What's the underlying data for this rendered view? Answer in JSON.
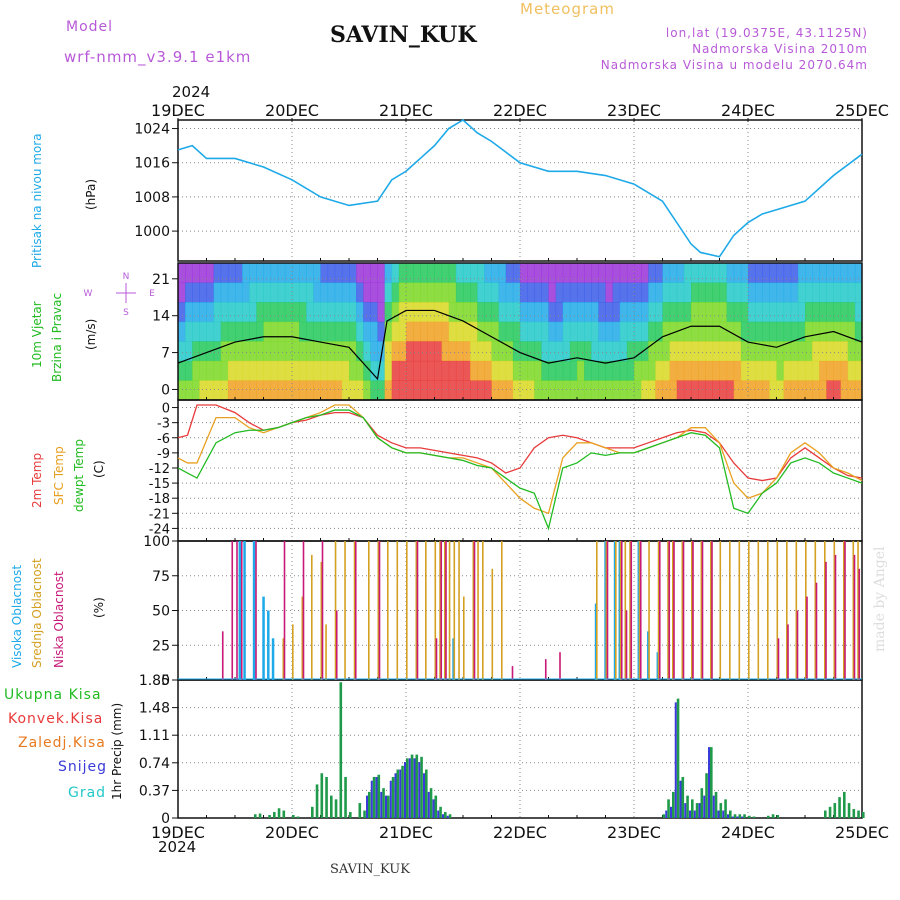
{
  "header": {
    "model_label": "Model",
    "model_name": "wrf-nmm_v3.9.1  e1km",
    "station": "SAVIN_KUK",
    "title": "Meteogram",
    "lonlat": "lon,lat (19.0375E, 43.1125N)",
    "altitude": "Nadmorska Visina 2010m",
    "model_altitude": "Nadmorska Visina u modelu 2070.64m"
  },
  "footer": {
    "station": "SAVIN_KUK",
    "credit": "made by Angel"
  },
  "time_axis": {
    "year": "2024",
    "labels": [
      "19DEC",
      "20DEC",
      "21DEC",
      "22DEC",
      "23DEC",
      "24DEC",
      "25DEC"
    ]
  },
  "colors": {
    "pressure": "#1ea9e8",
    "wind_label": "#22bb22",
    "temp2m": "#e83a3a",
    "sfc_temp": "#e8a020",
    "dewpt": "#22bb22",
    "high_cloud": "#1ea9e8",
    "mid_cloud": "#d4a020",
    "low_cloud": "#c81878",
    "precip_total": "#1f9a4a",
    "precip_conv": "#e83a3a",
    "precip_frozen": "#e87a20",
    "precip_snow": "#3a3ad8",
    "precip_hail": "#22c8c8"
  },
  "chart_data": [
    {
      "type": "line",
      "panel": "pressure",
      "ylabel_lines": [
        "Pritisak na nivou mora",
        "(hPa)"
      ],
      "yticks": [
        1000,
        1008,
        1016,
        1024
      ],
      "ylim": [
        993,
        1026
      ],
      "x_hours": [
        0,
        3,
        6,
        9,
        12,
        18,
        24,
        30,
        36,
        42,
        45,
        48,
        51,
        54,
        57,
        60,
        63,
        66,
        72,
        78,
        84,
        90,
        96,
        102,
        108,
        110,
        114,
        117,
        120,
        123,
        126,
        132,
        138,
        144
      ],
      "values": [
        1019,
        1020,
        1017,
        1017,
        1017,
        1015,
        1012,
        1008,
        1006,
        1007,
        1012,
        1014,
        1017,
        1020,
        1024,
        1026,
        1023,
        1021,
        1016,
        1014,
        1014,
        1013,
        1011,
        1007,
        997,
        995,
        994,
        999,
        1002,
        1004,
        1005,
        1007,
        1013,
        1018
      ],
      "color": "pressure"
    },
    {
      "type": "line",
      "panel": "wind",
      "ylabel_lines": [
        "10m Vjetar",
        "Brzina i Pravac",
        "(m/s)"
      ],
      "compass": [
        "N",
        "E",
        "S",
        "W"
      ],
      "yticks": [
        0,
        7,
        14,
        21
      ],
      "ylim": [
        -2,
        24
      ],
      "x_hours": [
        0,
        6,
        12,
        18,
        24,
        30,
        36,
        40,
        42,
        44,
        48,
        54,
        60,
        66,
        72,
        78,
        84,
        90,
        96,
        102,
        108,
        111,
        114,
        120,
        126,
        132,
        138,
        144
      ],
      "values": [
        5,
        7,
        9,
        10,
        10,
        9,
        8,
        4,
        2,
        13,
        15,
        15,
        13,
        10,
        7,
        5,
        6,
        5,
        6,
        10,
        12,
        12,
        12,
        9,
        8,
        10,
        11,
        9
      ],
      "color": "#000000"
    },
    {
      "type": "line",
      "panel": "temperature",
      "ylabel_lines": [
        "2m Temp",
        "SFC Temp",
        "dewpt Temp",
        "(C)"
      ],
      "yticks": [
        0,
        -3,
        -6,
        -9,
        -12,
        -15,
        -18,
        -21,
        -24
      ],
      "ylim": [
        -26.5,
        1.5
      ],
      "x_hours": [
        0,
        2,
        4,
        8,
        12,
        15,
        18,
        21,
        24,
        27,
        30,
        33,
        36,
        39,
        42,
        45,
        48,
        51,
        54,
        57,
        60,
        63,
        66,
        69,
        72,
        75,
        78,
        81,
        84,
        87,
        90,
        93,
        96,
        99,
        102,
        105,
        108,
        111,
        114,
        117,
        120,
        123,
        126,
        129,
        132,
        135,
        138,
        141,
        144
      ],
      "series": [
        {
          "name": "2m Temp",
          "color": "temp2m",
          "values": [
            -6,
            -5.5,
            0.5,
            0.5,
            -1,
            -3,
            -4.5,
            -4,
            -3,
            -2.5,
            -1.5,
            -1,
            -1,
            -2,
            -5.5,
            -7,
            -8,
            -8,
            -8.5,
            -9,
            -9.5,
            -10,
            -11,
            -13,
            -12,
            -8,
            -6,
            -5.5,
            -6,
            -7,
            -8,
            -8,
            -8,
            -7,
            -6,
            -5,
            -4.5,
            -5,
            -7,
            -11,
            -14,
            -14.5,
            -14,
            -10,
            -8,
            -10,
            -12,
            -13.5,
            -14
          ]
        },
        {
          "name": "SFC Temp",
          "color": "sfc_temp",
          "values": [
            -10,
            -11,
            -11,
            -2,
            -2,
            -4,
            -5,
            -4,
            -3,
            -2,
            -1,
            0.5,
            0.5,
            -2,
            -6,
            -8,
            -9,
            -9,
            -9.5,
            -10,
            -10,
            -11,
            -12,
            -15,
            -18,
            -20,
            -21,
            -10,
            -7,
            -7,
            -8,
            -9,
            -9,
            -8,
            -7,
            -6,
            -4,
            -4,
            -7,
            -15,
            -18,
            -17,
            -14,
            -9,
            -7,
            -9,
            -12,
            -13,
            -14.5
          ]
        },
        {
          "name": "dewpt Temp",
          "color": "dewpt",
          "values": [
            -12,
            -13,
            -14,
            -7,
            -5,
            -4.5,
            -4.5,
            -4,
            -3,
            -2,
            -1.5,
            -0.5,
            -0.5,
            -2,
            -6,
            -8,
            -9,
            -9,
            -9.5,
            -10,
            -10.5,
            -11.5,
            -12,
            -14,
            -16,
            -17,
            -24,
            -12,
            -11,
            -9,
            -9.5,
            -9,
            -9,
            -8,
            -7,
            -6,
            -5,
            -5.5,
            -8,
            -20,
            -21,
            -17,
            -15,
            -11,
            -10,
            -11,
            -13,
            -14,
            -15
          ]
        }
      ]
    },
    {
      "type": "bar",
      "panel": "clouds",
      "ylabel_lines": [
        "Visoka Oblacnost",
        "Srednja Oblacnost",
        "Niska Oblacnost",
        "(%)"
      ],
      "yticks": [
        0,
        25,
        50,
        75,
        100
      ],
      "ylim": [
        0,
        100
      ],
      "x_hours": [
        5,
        9,
        11,
        12,
        13,
        14,
        16,
        18,
        19,
        20,
        22,
        24,
        26,
        28,
        30,
        31,
        33,
        35,
        37,
        40,
        42,
        44,
        46,
        48,
        50,
        52,
        54,
        55,
        56,
        57,
        58,
        59,
        60,
        62,
        63,
        64,
        66,
        68,
        70,
        72,
        77,
        80,
        88,
        90,
        92,
        93,
        94,
        95,
        97,
        99,
        101,
        103,
        104,
        106,
        108,
        110,
        112,
        114,
        116,
        118,
        120,
        122,
        124,
        126,
        128,
        130,
        132,
        134,
        136,
        138,
        140,
        142,
        143
      ],
      "series": [
        {
          "name": "Visoka Oblacnost",
          "color": "high_cloud",
          "values": [
            0,
            0,
            0,
            0,
            100,
            100,
            100,
            60,
            50,
            30,
            0,
            0,
            0,
            0,
            0,
            0,
            0,
            0,
            0,
            0,
            0,
            0,
            0,
            0,
            0,
            0,
            0,
            0,
            0,
            0,
            30,
            0,
            0,
            0,
            0,
            0,
            0,
            0,
            0,
            0,
            0,
            0,
            55,
            100,
            100,
            100,
            0,
            0,
            100,
            35,
            20,
            0,
            0,
            0,
            0,
            0,
            0,
            0,
            0,
            0,
            0,
            0,
            0,
            0,
            0,
            0,
            0,
            0,
            0,
            0,
            0,
            0,
            0
          ]
        },
        {
          "name": "Srednja Oblacnost",
          "color": "mid_cloud",
          "values": [
            0,
            0,
            0,
            0,
            0,
            0,
            0,
            0,
            0,
            0,
            30,
            40,
            60,
            90,
            85,
            40,
            100,
            100,
            100,
            100,
            100,
            100,
            100,
            100,
            100,
            100,
            100,
            100,
            100,
            100,
            100,
            100,
            60,
            100,
            100,
            100,
            80,
            100,
            0,
            0,
            0,
            0,
            100,
            100,
            100,
            100,
            100,
            100,
            100,
            100,
            100,
            100,
            100,
            100,
            100,
            100,
            100,
            100,
            100,
            100,
            100,
            100,
            100,
            100,
            100,
            100,
            100,
            100,
            100,
            100,
            100,
            100,
            100
          ]
        },
        {
          "name": "Niska Oblacnost",
          "color": "low_cloud",
          "values": [
            0,
            35,
            100,
            100,
            100,
            0,
            100,
            0,
            0,
            0,
            100,
            0,
            100,
            0,
            100,
            0,
            50,
            0,
            100,
            0,
            100,
            0,
            0,
            0,
            100,
            0,
            30,
            100,
            100,
            0,
            0,
            0,
            0,
            100,
            0,
            0,
            0,
            0,
            10,
            0,
            15,
            20,
            0,
            100,
            0,
            100,
            50,
            100,
            100,
            0,
            100,
            100,
            100,
            100,
            100,
            100,
            100,
            0,
            0,
            0,
            0,
            0,
            0,
            30,
            40,
            50,
            60,
            70,
            85,
            90,
            100,
            90,
            80
          ]
        }
      ]
    },
    {
      "type": "bar",
      "panel": "precipitation",
      "ylabel_lines": [
        "1hr Precip (mm)"
      ],
      "yticks": [
        0,
        0.37,
        0.74,
        1.11,
        1.48,
        1.85
      ],
      "ylim": [
        0,
        1.85
      ],
      "legend_entries": [
        {
          "name": "Ukupna Kisa",
          "color": "precip_total"
        },
        {
          "name": "Konvek.Kisa",
          "color": "precip_conv"
        },
        {
          "name": "Zaledj.Kisa",
          "color": "precip_frozen"
        },
        {
          "name": "Snijeg",
          "color": "precip_snow"
        },
        {
          "name": "Grad",
          "color": "precip_hail"
        }
      ],
      "x_hours": [
        16,
        17,
        19,
        20,
        21,
        22,
        24,
        25,
        28,
        29,
        30,
        31,
        32,
        33,
        34,
        35,
        36,
        38,
        39,
        40,
        41,
        42,
        43,
        44,
        45,
        46,
        47,
        48,
        49,
        50,
        51,
        52,
        53,
        54,
        55,
        56,
        57,
        58,
        59,
        60,
        61,
        102,
        103,
        104,
        105,
        106,
        107,
        108,
        109,
        110,
        111,
        112,
        113,
        114,
        115,
        116,
        117,
        118,
        119,
        120,
        121,
        124,
        125,
        126,
        136,
        137,
        138,
        139,
        140,
        141,
        142,
        143,
        144
      ],
      "series": [
        {
          "name": "Ukupna Kisa",
          "values": [
            0.05,
            0.06,
            0.04,
            0.08,
            0.13,
            0.1,
            0.04,
            0.02,
            0.15,
            0.45,
            0.6,
            0.55,
            0.3,
            0.25,
            1.82,
            0.55,
            0.08,
            0.2,
            0.1,
            0.35,
            0.55,
            0.58,
            0.4,
            0.3,
            0.55,
            0.65,
            0.7,
            0.8,
            0.85,
            0.85,
            0.82,
            0.65,
            0.4,
            0.3,
            0.15,
            0.08,
            0.05,
            0,
            0,
            0,
            0,
            0.05,
            0.25,
            0.35,
            1.6,
            0.55,
            0.3,
            0.25,
            0.2,
            0.4,
            0.6,
            0.95,
            0.35,
            0.2,
            0.25,
            0.1,
            0.05,
            0.05,
            0.05,
            0.03,
            0.02,
            0.03,
            0.05,
            0.04,
            0.1,
            0.15,
            0.2,
            0.28,
            0.35,
            0.2,
            0.12,
            0.1,
            0.08
          ]
        },
        {
          "name": "Snijeg",
          "values": [
            0,
            0,
            0,
            0,
            0,
            0,
            0,
            0,
            0,
            0,
            0,
            0,
            0,
            0,
            0,
            0,
            0,
            0,
            0,
            0.3,
            0.5,
            0.55,
            0.35,
            0.3,
            0.5,
            0.6,
            0.65,
            0.75,
            0.8,
            0.8,
            0.75,
            0.6,
            0.35,
            0.25,
            0.1,
            0.05,
            0.03,
            0,
            0,
            0,
            0,
            0,
            0.1,
            0.15,
            1.55,
            0.5,
            0.2,
            0.1,
            0.1,
            0.2,
            0.3,
            0.95,
            0.3,
            0.1,
            0.1,
            0.05,
            0.02,
            0.02,
            0.02,
            0,
            0,
            0,
            0,
            0,
            0,
            0,
            0,
            0,
            0,
            0,
            0,
            0,
            0
          ]
        }
      ]
    }
  ]
}
